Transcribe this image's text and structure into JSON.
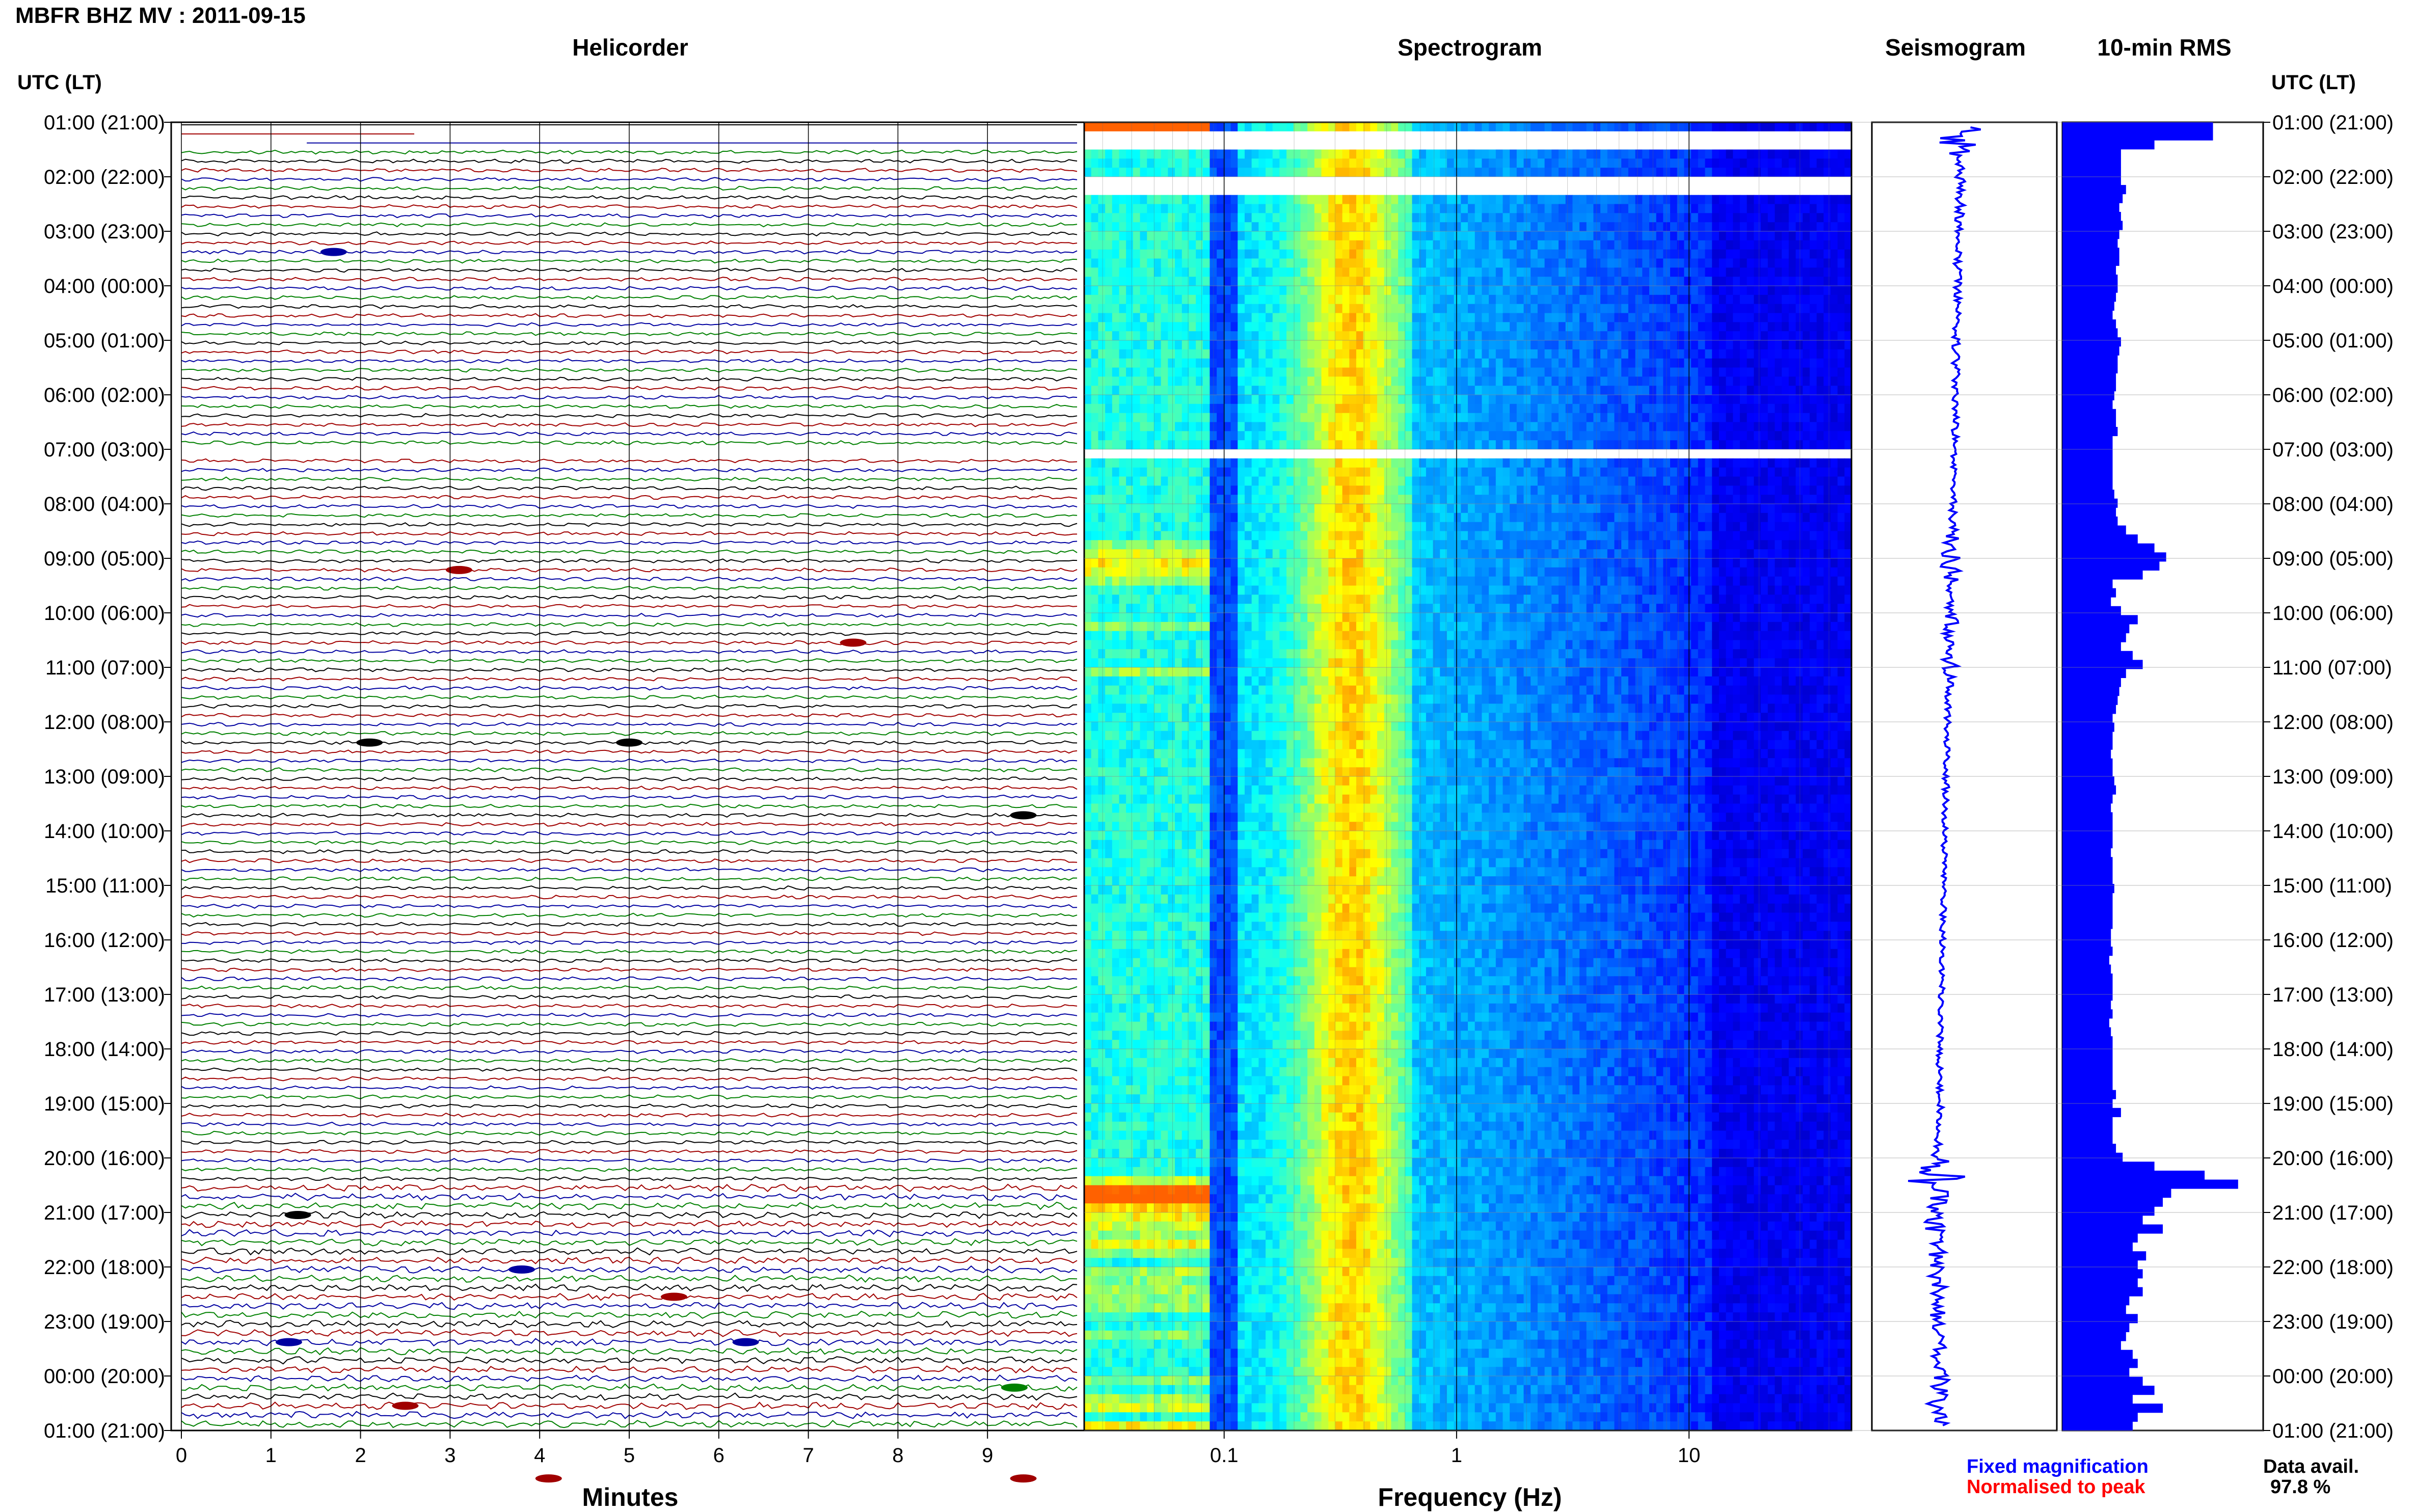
{
  "header": {
    "title": "MBFR BHZ MV : 2011-09-15",
    "utc_label_left": "UTC (LT)",
    "utc_label_right": "UTC (LT)"
  },
  "panels": {
    "helicorder": "Helicorder",
    "spectrogram": "Spectrogram",
    "seismogram": "Seismogram",
    "rms": "10-min RMS"
  },
  "axes": {
    "helicorder_xlabel": "Minutes",
    "spectrogram_xlabel": "Frequency (Hz)"
  },
  "footer": {
    "fixed_magnification": "Fixed magnification",
    "normalised_to_peak": "Normalised to peak",
    "data_avail_label": "Data avail.",
    "data_avail_value": "97.8 %"
  },
  "colors": {
    "fixed_magnification": "#0000ff",
    "normalised_to_peak": "#ff0000",
    "trace_cycle": [
      "#000000",
      "#a00000",
      "#0000a0",
      "#008000"
    ],
    "seismogram": "#0000ff",
    "rms_bars": "#0000ff"
  },
  "chart_data": [
    {
      "type": "line",
      "name": "Helicorder",
      "xlabel": "Minutes",
      "xlim": [
        0,
        10
      ],
      "xticks": [
        "0",
        "1",
        "2",
        "3",
        "4",
        "5",
        "6",
        "7",
        "8",
        "9"
      ],
      "time_labels": [
        "01:00 (21:00)",
        "02:00 (22:00)",
        "03:00 (23:00)",
        "04:00 (00:00)",
        "05:00 (01:00)",
        "06:00 (02:00)",
        "07:00 (03:00)",
        "08:00 (04:00)",
        "09:00 (05:00)",
        "10:00 (06:00)",
        "11:00 (07:00)",
        "12:00 (08:00)",
        "13:00 (09:00)",
        "14:00 (10:00)",
        "15:00 (11:00)",
        "16:00 (12:00)",
        "17:00 (13:00)",
        "18:00 (14:00)",
        "19:00 (15:00)",
        "20:00 (16:00)",
        "21:00 (17:00)",
        "22:00 (18:00)",
        "23:00 (19:00)",
        "00:00 (20:00)",
        "01:00 (21:00)"
      ],
      "lines_per_hour": 6,
      "grid": true
    },
    {
      "type": "heatmap",
      "name": "Spectrogram",
      "xlabel": "Frequency (Hz)",
      "x_scale": "log",
      "xlim": [
        0.025,
        50
      ],
      "xticks": [
        "0.1",
        "1",
        "10"
      ],
      "colormap": "jet"
    },
    {
      "type": "line",
      "name": "Seismogram",
      "color": "#0000ff"
    },
    {
      "type": "bar",
      "name": "10-min RMS",
      "orientation": "horizontal",
      "values": [
        0.9,
        0.9,
        0.55,
        0.35,
        0.35,
        0.35,
        0.35,
        0.38,
        0.36,
        0.34,
        0.35,
        0.36,
        0.34,
        0.33,
        0.34,
        0.34,
        0.32,
        0.33,
        0.33,
        0.32,
        0.31,
        0.3,
        0.32,
        0.33,
        0.35,
        0.34,
        0.33,
        0.33,
        0.32,
        0.32,
        0.31,
        0.3,
        0.32,
        0.32,
        0.33,
        0.3,
        0.3,
        0.3,
        0.3,
        0.3,
        0.3,
        0.31,
        0.33,
        0.32,
        0.33,
        0.38,
        0.45,
        0.55,
        0.62,
        0.58,
        0.48,
        0.3,
        0.32,
        0.29,
        0.35,
        0.45,
        0.4,
        0.38,
        0.35,
        0.42,
        0.48,
        0.38,
        0.35,
        0.34,
        0.33,
        0.32,
        0.3,
        0.31,
        0.3,
        0.3,
        0.29,
        0.3,
        0.3,
        0.31,
        0.32,
        0.3,
        0.29,
        0.3,
        0.3,
        0.3,
        0.3,
        0.29,
        0.3,
        0.3,
        0.3,
        0.31,
        0.3,
        0.3,
        0.3,
        0.3,
        0.29,
        0.29,
        0.3,
        0.28,
        0.29,
        0.3,
        0.3,
        0.3,
        0.29,
        0.3,
        0.28,
        0.29,
        0.3,
        0.3,
        0.3,
        0.3,
        0.3,
        0.3,
        0.32,
        0.3,
        0.35,
        0.3,
        0.3,
        0.3,
        0.32,
        0.36,
        0.55,
        0.85,
        1.05,
        0.65,
        0.6,
        0.55,
        0.48,
        0.6,
        0.45,
        0.42,
        0.5,
        0.45,
        0.48,
        0.45,
        0.48,
        0.4,
        0.38,
        0.45,
        0.4,
        0.38,
        0.35,
        0.42,
        0.45,
        0.4,
        0.48,
        0.55,
        0.42,
        0.6,
        0.45,
        0.42
      ],
      "xlim": [
        0,
        1.2
      ]
    }
  ]
}
